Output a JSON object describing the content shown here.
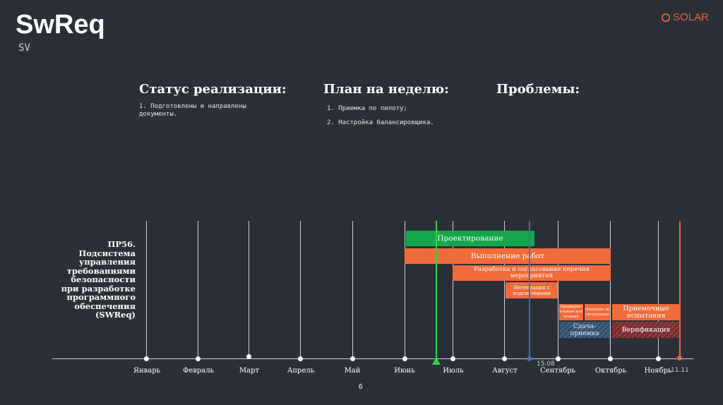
{
  "header": {
    "title": "SwReq",
    "subtitle": "SV",
    "logo": "SOLAR",
    "page_number": "6"
  },
  "status": {
    "heading": "Статус реализации:",
    "items": [
      "1. Подготовлены и направлены документы."
    ]
  },
  "plan": {
    "heading": "План на неделю:",
    "items": [
      "1. Приемка по пилоту;",
      "2. Настройка балансировщика."
    ]
  },
  "problems": {
    "heading": "Проблемы:"
  },
  "project": {
    "name": "ПР56. Подсистема управления требованиями безопасности при разработке программного обеспечения (SWReq)"
  },
  "timeline": {
    "months": [
      "Январь",
      "Февраль",
      "Март",
      "Апрель",
      "Май",
      "Июнь",
      "Июль",
      "Август",
      "Сентябрь",
      "Октябрь",
      "Ноябрь"
    ],
    "markers": {
      "blue_date": "15.08",
      "orange_date": "11.11"
    }
  },
  "tasks": {
    "design": "Проектирование",
    "execution": "Выполнение работ",
    "measures": "Разработка и согласование перечня мероприятий",
    "integration": "Интеграция с подсистемами",
    "prelim": "Предварительные испытания",
    "experimental": "Опытная эксплуатация",
    "handover": "Сдача-приемка",
    "acceptance": "Приемочные испытания",
    "verification": "Верификация"
  },
  "colors": {
    "green": "#14a84a",
    "orange": "#f26b3a",
    "blue": "#3f6fb8",
    "dark_red": "#7a2a2a",
    "marker_green": "#2fd14a",
    "marker_orange": "#e8643a"
  }
}
